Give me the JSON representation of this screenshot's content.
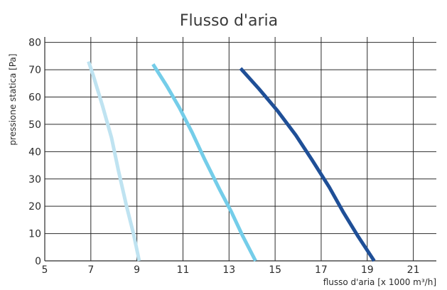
{
  "chart_data": {
    "type": "line",
    "title": "Flusso d'aria",
    "xlabel": "flusso d'aria [x 1000 m³/h]",
    "ylabel": "pressione statica [Pa]",
    "xlim": [
      5,
      22
    ],
    "ylim": [
      0,
      82
    ],
    "xticks": [
      5,
      7,
      9,
      11,
      13,
      15,
      17,
      19,
      21
    ],
    "yticks": [
      0,
      10,
      20,
      30,
      40,
      50,
      60,
      70,
      80
    ],
    "grid": true,
    "series": [
      {
        "color": "#bfe3f1",
        "points": [
          [
            6.9,
            73
          ],
          [
            7.1,
            68
          ],
          [
            7.5,
            57
          ],
          [
            7.9,
            45
          ],
          [
            8.2,
            33
          ],
          [
            8.55,
            20
          ],
          [
            8.85,
            10
          ],
          [
            9.1,
            0
          ]
        ]
      },
      {
        "color": "#74cde9",
        "points": [
          [
            9.7,
            72
          ],
          [
            10.3,
            64
          ],
          [
            10.85,
            56
          ],
          [
            11.4,
            47
          ],
          [
            11.95,
            37
          ],
          [
            12.6,
            26
          ],
          [
            13.1,
            18
          ],
          [
            13.6,
            9
          ],
          [
            14.15,
            0
          ]
        ]
      },
      {
        "color": "#1f4f97",
        "points": [
          [
            13.5,
            70.5
          ],
          [
            14.3,
            63
          ],
          [
            15.1,
            55
          ],
          [
            15.9,
            46
          ],
          [
            16.6,
            37
          ],
          [
            17.35,
            27
          ],
          [
            17.95,
            18
          ],
          [
            18.6,
            9
          ],
          [
            19.3,
            0
          ]
        ]
      }
    ]
  }
}
